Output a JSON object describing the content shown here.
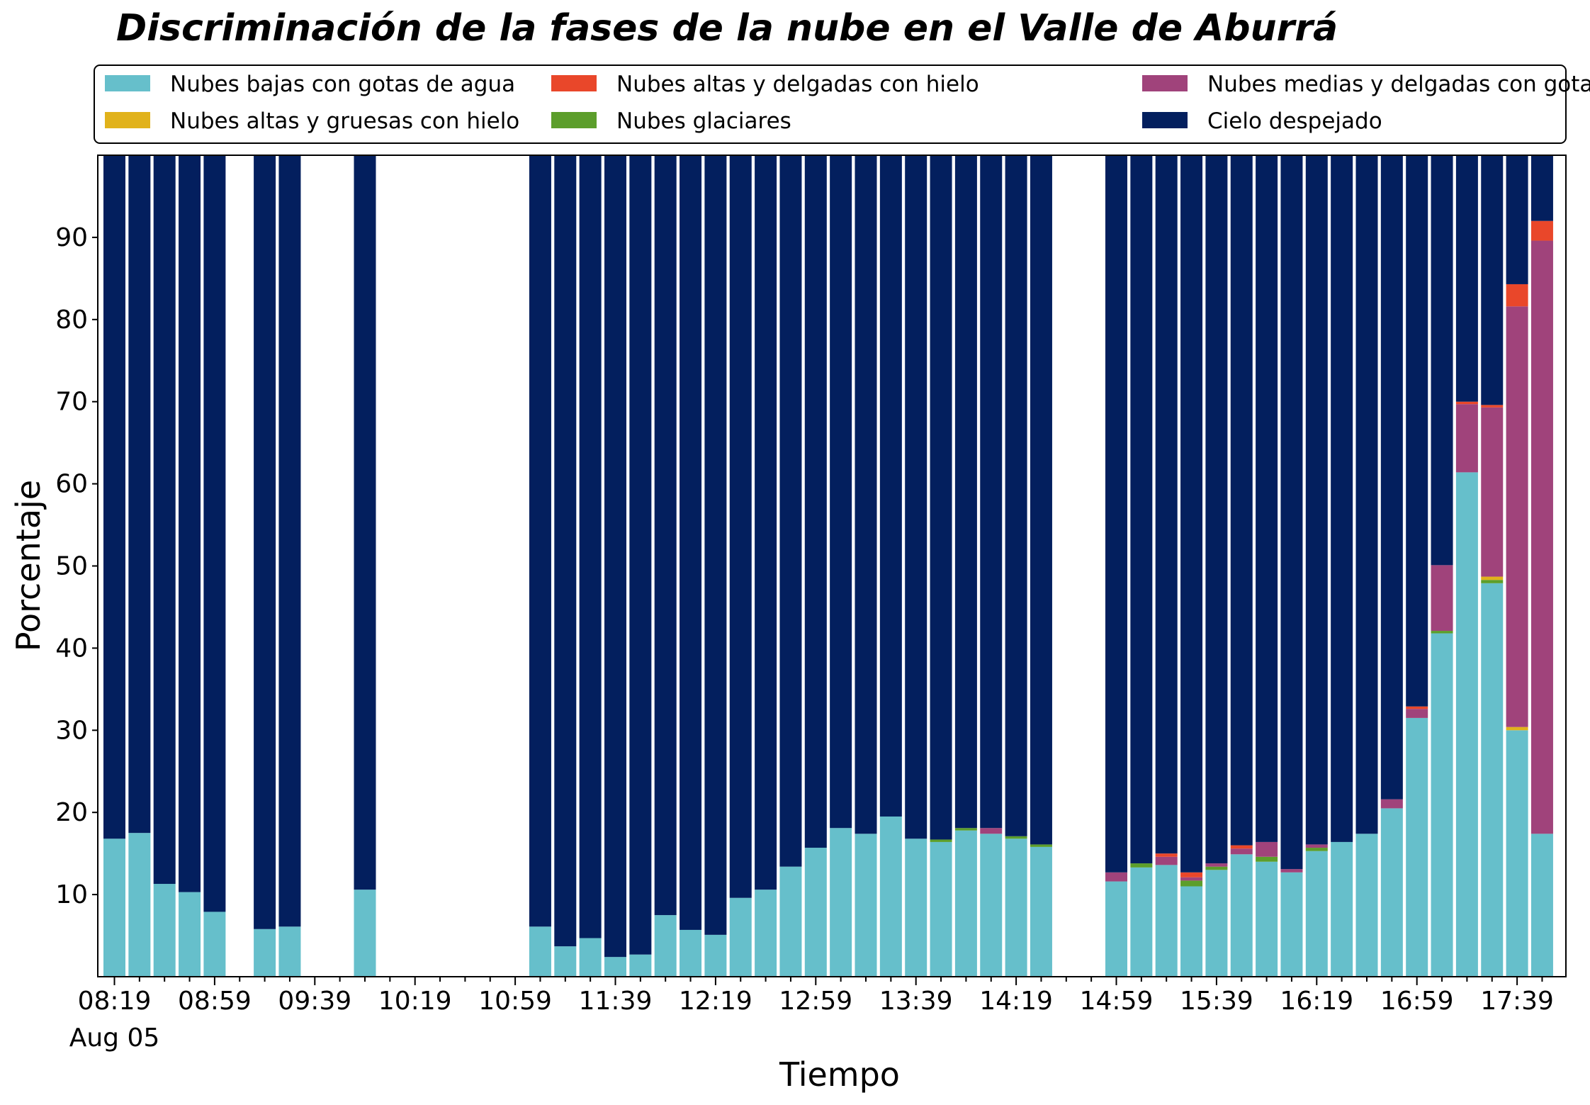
{
  "chart_data": {
    "type": "bar",
    "stacked": true,
    "title": "Discriminación de la fases de la nube en el Valle de Aburrá",
    "xlabel": "Tiempo",
    "ylabel": "Porcentaje",
    "ylim": [
      0,
      100
    ],
    "yticks": [
      "10",
      "20",
      "30",
      "40",
      "50",
      "60",
      "70",
      "80",
      "90"
    ],
    "xticks": [
      "08:19",
      "08:59",
      "09:39",
      "10:19",
      "10:59",
      "11:39",
      "12:19",
      "12:59",
      "13:39",
      "14:19",
      "14:59",
      "15:39",
      "16:19",
      "16:59",
      "17:39"
    ],
    "xtick_sublabel": "Aug 05",
    "interval_minutes": 10,
    "grid": false,
    "legend_position": "top, outside plot, 3 columns",
    "legend_entries": [
      {
        "name": "Nubes bajas con gotas de agua",
        "color": "#66bfcb"
      },
      {
        "name": "Nubes altas y gruesas con hielo",
        "color": "#e1b21b"
      },
      {
        "name": "Nubes altas y delgadas con hielo",
        "color": "#e9472a"
      },
      {
        "name": "Nubes glaciares",
        "color": "#5c9e2b"
      },
      {
        "name": "Nubes medias y delgadas con gotas de agua",
        "color": "#a0437b"
      },
      {
        "name": "Cielo despejado",
        "color": "#031f5e"
      }
    ],
    "stack_order": [
      "Nubes bajas con gotas de agua",
      "Nubes glaciares",
      "Nubes altas y gruesas con hielo",
      "Nubes medias y delgadas con gotas de agua",
      "Nubes altas y delgadas con hielo",
      "Cielo despejado"
    ],
    "bars": [
      {
        "time": "08:19",
        "values": [
          16.8,
          0,
          0,
          0,
          0,
          83.2
        ]
      },
      {
        "time": "08:29",
        "values": [
          17.5,
          0,
          0,
          0,
          0,
          82.5
        ]
      },
      {
        "time": "08:39",
        "values": [
          11.3,
          0,
          0,
          0,
          0,
          88.7
        ]
      },
      {
        "time": "08:49",
        "values": [
          10.3,
          0,
          0,
          0,
          0,
          89.7
        ]
      },
      {
        "time": "08:59",
        "values": [
          7.9,
          0,
          0,
          0,
          0,
          92.1
        ]
      },
      {
        "time": "09:19",
        "values": [
          5.8,
          0,
          0,
          0,
          0,
          94.2
        ]
      },
      {
        "time": "09:29",
        "values": [
          6.1,
          0,
          0,
          0,
          0,
          93.9
        ]
      },
      {
        "time": "09:59",
        "values": [
          10.6,
          0,
          0,
          0,
          0,
          89.4
        ]
      },
      {
        "time": "11:09",
        "values": [
          6.1,
          0,
          0,
          0,
          0,
          93.9
        ]
      },
      {
        "time": "11:19",
        "values": [
          3.7,
          0,
          0,
          0,
          0,
          96.3
        ]
      },
      {
        "time": "11:29",
        "values": [
          4.7,
          0,
          0,
          0,
          0,
          95.3
        ]
      },
      {
        "time": "11:39",
        "values": [
          2.4,
          0,
          0,
          0,
          0,
          97.6
        ]
      },
      {
        "time": "11:49",
        "values": [
          2.7,
          0,
          0,
          0,
          0,
          97.3
        ]
      },
      {
        "time": "11:59",
        "values": [
          7.5,
          0,
          0,
          0,
          0,
          92.5
        ]
      },
      {
        "time": "12:09",
        "values": [
          5.7,
          0,
          0,
          0,
          0,
          94.3
        ]
      },
      {
        "time": "12:19",
        "values": [
          5.1,
          0,
          0,
          0,
          0,
          94.9
        ]
      },
      {
        "time": "12:29",
        "values": [
          9.6,
          0,
          0,
          0,
          0,
          90.4
        ]
      },
      {
        "time": "12:39",
        "values": [
          10.6,
          0,
          0,
          0,
          0,
          89.4
        ]
      },
      {
        "time": "12:49",
        "values": [
          13.4,
          0,
          0,
          0,
          0,
          86.6
        ]
      },
      {
        "time": "12:59",
        "values": [
          15.7,
          0,
          0,
          0,
          0,
          84.3
        ]
      },
      {
        "time": "13:09",
        "values": [
          18.1,
          0,
          0,
          0,
          0,
          81.9
        ]
      },
      {
        "time": "13:19",
        "values": [
          17.4,
          0,
          0,
          0,
          0,
          82.6
        ]
      },
      {
        "time": "13:29",
        "values": [
          19.5,
          0,
          0,
          0,
          0,
          80.5
        ]
      },
      {
        "time": "13:39",
        "values": [
          16.8,
          0,
          0,
          0,
          0,
          83.2
        ]
      },
      {
        "time": "13:49",
        "values": [
          16.4,
          0.3,
          0,
          0,
          0,
          83.3
        ]
      },
      {
        "time": "13:59",
        "values": [
          17.8,
          0.3,
          0,
          0,
          0,
          81.9
        ]
      },
      {
        "time": "14:09",
        "values": [
          17.4,
          0,
          0,
          0.7,
          0,
          81.9
        ]
      },
      {
        "time": "14:19",
        "values": [
          16.8,
          0.3,
          0,
          0,
          0,
          82.9
        ]
      },
      {
        "time": "14:29",
        "values": [
          15.8,
          0.3,
          0,
          0,
          0,
          83.9
        ]
      },
      {
        "time": "14:59",
        "values": [
          11.6,
          0,
          0,
          1.1,
          0,
          87.3
        ]
      },
      {
        "time": "15:09",
        "values": [
          13.3,
          0.5,
          0,
          0,
          0,
          86.2
        ]
      },
      {
        "time": "15:19",
        "values": [
          13.6,
          0,
          0,
          1.0,
          0.4,
          85.0
        ]
      },
      {
        "time": "15:29",
        "values": [
          11.0,
          0.7,
          0,
          0.4,
          0.6,
          87.3
        ]
      },
      {
        "time": "15:39",
        "values": [
          13.0,
          0.4,
          0,
          0.4,
          0,
          86.2
        ]
      },
      {
        "time": "15:49",
        "values": [
          14.9,
          0,
          0,
          0.7,
          0.4,
          84.0
        ]
      },
      {
        "time": "15:59",
        "values": [
          14.0,
          0.6,
          0,
          1.8,
          0,
          83.6
        ]
      },
      {
        "time": "16:09",
        "values": [
          12.7,
          0,
          0,
          0.4,
          0,
          86.9
        ]
      },
      {
        "time": "16:19",
        "values": [
          15.3,
          0.4,
          0,
          0.4,
          0,
          83.9
        ]
      },
      {
        "time": "16:29",
        "values": [
          16.4,
          0,
          0,
          0,
          0,
          83.6
        ]
      },
      {
        "time": "16:39",
        "values": [
          17.4,
          0,
          0,
          0,
          0,
          82.6
        ]
      },
      {
        "time": "16:49",
        "values": [
          20.5,
          0,
          0,
          1.1,
          0,
          78.4
        ]
      },
      {
        "time": "16:59",
        "values": [
          31.5,
          0,
          0,
          1.1,
          0.3,
          67.1
        ]
      },
      {
        "time": "17:09",
        "values": [
          41.8,
          0.3,
          0,
          8.0,
          0,
          49.9
        ]
      },
      {
        "time": "17:19",
        "values": [
          61.4,
          0,
          0,
          8.3,
          0.3,
          30.0
        ]
      },
      {
        "time": "17:29",
        "values": [
          47.9,
          0.4,
          0.4,
          20.6,
          0.3,
          30.4
        ]
      },
      {
        "time": "17:39",
        "values": [
          30.0,
          0,
          0.4,
          51.2,
          2.7,
          15.7
        ]
      },
      {
        "time": "17:49",
        "values": [
          17.4,
          0,
          0,
          72.2,
          2.4,
          8.0
        ]
      }
    ]
  }
}
